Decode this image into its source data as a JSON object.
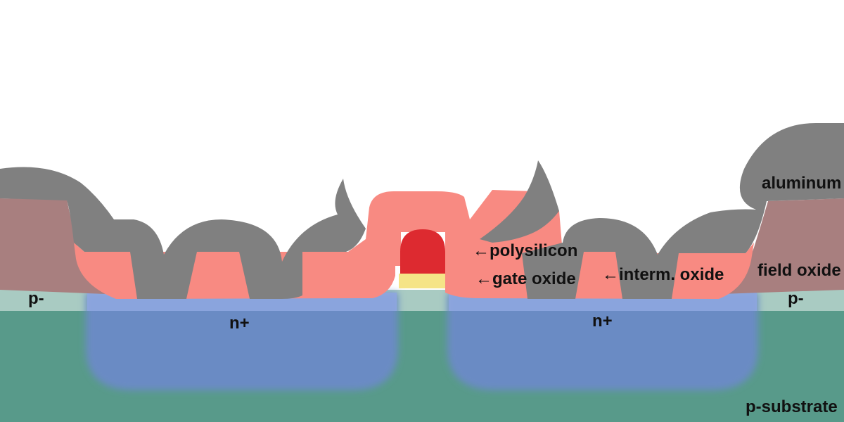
{
  "labels": {
    "aluminum": "aluminum",
    "field_oxide": "field oxide",
    "p_minus_left": "p-",
    "p_minus_right": "p-",
    "n_plus_left": "n+",
    "n_plus_right": "n+",
    "p_substrate": "p-substrate",
    "polysilicon": "←polysilicon",
    "gate_oxide": "←gate oxide",
    "interm_oxide": "←interm. oxide"
  },
  "colors": {
    "substrate": "#589a8a",
    "p_well_strip": "#a9cbc2",
    "n_plus": "#6a8bc4",
    "n_plus_surface": "#8ea6e0",
    "field_oxide": "#a87f7f",
    "interm_oxide": "#f88a82",
    "aluminum": "#808080",
    "polysilicon": "#dd2a30",
    "gate_oxide": "#f5e487"
  }
}
